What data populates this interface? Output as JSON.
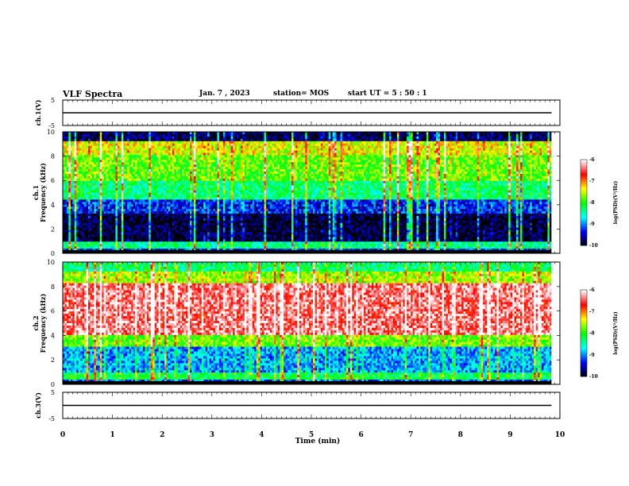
{
  "header": {
    "title": "VLF Spectra",
    "date": "Jan. 7 , 2023",
    "station": "station= MOS",
    "start": "start  UT =   5 : 50 : 1"
  },
  "chart_data": [
    {
      "type": "line",
      "ylabel": "ch.1(V)",
      "yticks": [
        "5",
        "-5"
      ],
      "ylim": [
        -5,
        5
      ],
      "x": [
        0,
        9.83
      ],
      "values": [
        0,
        0
      ]
    },
    {
      "type": "heatmap",
      "ylabel": "ch.1 Frequency (kHz)",
      "ylim": [
        0,
        10
      ],
      "yticks": [
        "0",
        "2",
        "4",
        "6",
        "8",
        "10"
      ],
      "colorbar": {
        "label": "log(PSD)(V²/Hz)",
        "ticks": [
          "-6",
          "-7",
          "-8",
          "-9",
          "-10"
        ],
        "range": [
          -10,
          -6
        ]
      },
      "bands": [
        {
          "from": 0.0,
          "to": 0.3,
          "level": -9.3
        },
        {
          "from": 0.3,
          "to": 0.9,
          "level": -8.4
        },
        {
          "from": 0.9,
          "to": 3.2,
          "level": -9.9
        },
        {
          "from": 3.2,
          "to": 4.4,
          "level": -9.3
        },
        {
          "from": 4.4,
          "to": 6.0,
          "level": -8.3
        },
        {
          "from": 6.0,
          "to": 8.0,
          "level": -7.8
        },
        {
          "from": 8.0,
          "to": 9.2,
          "level": -7.4
        },
        {
          "from": 9.2,
          "to": 10.0,
          "level": -9.8
        }
      ]
    },
    {
      "type": "heatmap",
      "ylabel": "ch.2 Frequency (kHz)",
      "ylim": [
        0,
        10
      ],
      "yticks": [
        "0",
        "2",
        "4",
        "6",
        "8",
        "10"
      ],
      "colorbar": {
        "label": "log(PSD)(V²/Hz)",
        "ticks": [
          "-6",
          "-7",
          "-8",
          "-9",
          "-10"
        ],
        "range": [
          -10,
          -6
        ]
      },
      "bands": [
        {
          "from": 0.0,
          "to": 0.3,
          "level": -9.2
        },
        {
          "from": 0.3,
          "to": 1.0,
          "level": -8.2
        },
        {
          "from": 1.0,
          "to": 3.0,
          "level": -8.9
        },
        {
          "from": 3.0,
          "to": 4.0,
          "level": -7.8
        },
        {
          "from": 4.0,
          "to": 8.3,
          "level": -6.4
        },
        {
          "from": 8.3,
          "to": 9.2,
          "level": -7.6
        },
        {
          "from": 9.2,
          "to": 10.0,
          "level": -8.3
        }
      ]
    },
    {
      "type": "line",
      "ylabel": "ch.3(V)",
      "yticks": [
        "5",
        "-5"
      ],
      "ylim": [
        -5,
        5
      ],
      "x": [
        0,
        9.83
      ],
      "values": [
        0,
        0
      ],
      "xlabel": "Time  (min)",
      "xlim": [
        0,
        10
      ],
      "xticks": [
        "0",
        "1",
        "2",
        "3",
        "4",
        "5",
        "6",
        "7",
        "8",
        "9",
        "10"
      ]
    }
  ],
  "colors": {
    "colormap": [
      "#000000",
      "#0000ff",
      "#00ffff",
      "#00ff00",
      "#ffff00",
      "#ff0000",
      "#ffffff"
    ]
  }
}
